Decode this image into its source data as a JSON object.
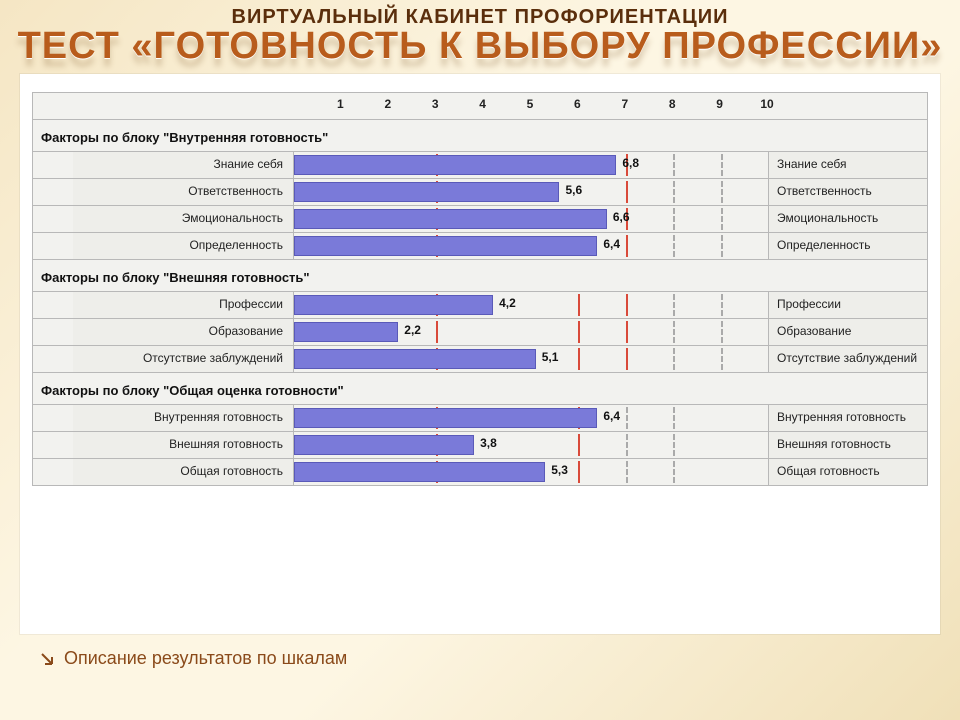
{
  "header": {
    "subtitle": "ВИРТУАЛЬНЫЙ КАБИНЕТ ПРОФОРИЕНТАЦИИ",
    "title": "ТЕСТ «ГОТОВНОСТЬ К ВЫБОРУ ПРОФЕССИИ»"
  },
  "chart": {
    "scale": {
      "min": 0,
      "max": 10,
      "tick_labels": [
        "1",
        "2",
        "3",
        "4",
        "5",
        "6",
        "7",
        "8",
        "9",
        "10"
      ]
    },
    "bar_color": "#7a7ad9",
    "bar_border": "#5a5ab8",
    "panel_bg": "#f2f2ef",
    "cell_bg": "#eeeeea",
    "border_color": "#b8b8b8",
    "red_line_color": "#d94a3a",
    "dash_line_color": "#aaaaaa",
    "blocks": [
      {
        "title": "Факторы по блоку \"Внутренняя готовность\"",
        "red_zones": [
          3,
          7
        ],
        "dash_zones": [
          8,
          9
        ],
        "rows": [
          {
            "left": "Знание себя",
            "right": "Знание себя",
            "value": 6.8,
            "value_text": "6,8"
          },
          {
            "left": "Ответственность",
            "right": "Ответственность",
            "value": 5.6,
            "value_text": "5,6"
          },
          {
            "left": "Эмоциональность",
            "right": "Эмоциональность",
            "value": 6.6,
            "value_text": "6,6"
          },
          {
            "left": "Определенность",
            "right": "Определенность",
            "value": 6.4,
            "value_text": "6,4"
          }
        ]
      },
      {
        "title": "Факторы по блоку \"Внешняя готовность\"",
        "red_zones": [
          3,
          6,
          7
        ],
        "dash_zones": [
          8,
          9
        ],
        "rows": [
          {
            "left": "Профессии",
            "right": "Профессии",
            "value": 4.2,
            "value_text": "4,2"
          },
          {
            "left": "Образование",
            "right": "Образование",
            "value": 2.2,
            "value_text": "2,2"
          },
          {
            "left": "Отсутствие заблуждений",
            "right": "Отсутствие заблуждений",
            "value": 5.1,
            "value_text": "5,1"
          }
        ]
      },
      {
        "title": "Факторы по блоку \"Общая оценка готовности\"",
        "red_zones": [
          3,
          6
        ],
        "dash_zones": [
          7,
          8
        ],
        "rows": [
          {
            "left": "Внутренняя готовность",
            "right": "Внутренняя готовность",
            "value": 6.4,
            "value_text": "6,4"
          },
          {
            "left": "Внешняя готовность",
            "right": "Внешняя готовность",
            "value": 3.8,
            "value_text": "3,8"
          },
          {
            "left": "Общая готовность",
            "right": "Общая готовность",
            "value": 5.3,
            "value_text": "5,3"
          }
        ]
      }
    ]
  },
  "footer": {
    "link_text": "Описание результатов по шкалам"
  }
}
